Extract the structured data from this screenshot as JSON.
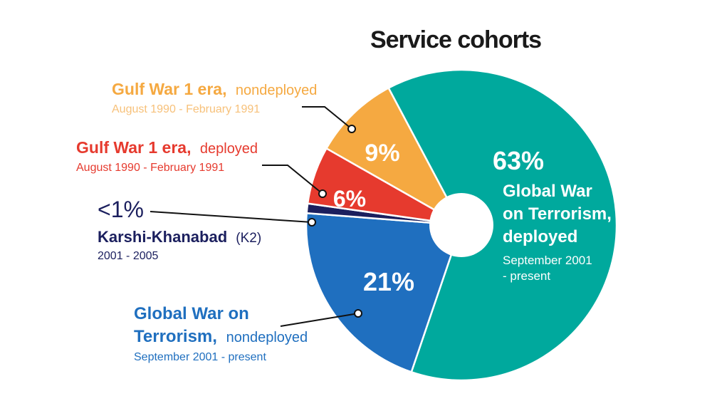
{
  "chart_data": {
    "type": "pie",
    "title": "Service cohorts",
    "slices": [
      {
        "percent_label": "63%",
        "value": 63,
        "color": "#00a99d",
        "label_lines": [
          "Global War",
          "on Terrorism,",
          "deployed"
        ],
        "date_lines": [
          "September 2001",
          "- present"
        ]
      },
      {
        "percent_label": "21%",
        "value": 21,
        "color": "#1f6fbf",
        "label_bold_1": "Global War on",
        "label_bold_2": "Terrorism,",
        "label_suffix": "nondeployed",
        "dates": "September 2001 - present"
      },
      {
        "percent_label": "<1%",
        "value": 1,
        "color": "#1b1f5e",
        "label_bold": "Karshi-Khanabad",
        "label_suffix": "(K2)",
        "dates": "2001 - 2005"
      },
      {
        "percent_label": "6%",
        "value": 6,
        "color": "#e63a2e",
        "label_bold": "Gulf War 1 era,",
        "label_suffix": "deployed",
        "dates": "August 1990 - February 1991"
      },
      {
        "percent_label": "9%",
        "value": 9,
        "color": "#f5a941",
        "label_bold": "Gulf War 1 era,",
        "label_suffix": "nondeployed",
        "dates": "August 1990 - February 1991"
      }
    ]
  },
  "colors": {
    "gwot_deployed": "#00a99d",
    "gwot_nondeployed": "#1f6fbf",
    "k2": "#1b1f5e",
    "gw_deployed": "#e63a2e",
    "gw_nondeployed": "#f5a941",
    "gw_nondeployed_text": "#f5a941",
    "gw_nondeployed_date": "#f7c17a",
    "leader": "#111111"
  }
}
